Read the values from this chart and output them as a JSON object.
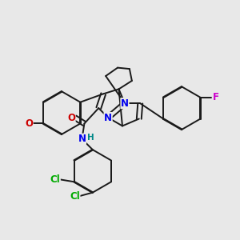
{
  "background_color": "#e8e8e8",
  "figsize": [
    3.0,
    3.0
  ],
  "dpi": 100,
  "bond_color": "#1a1a1a",
  "bond_width": 1.4,
  "atom_colors": {
    "N": "#0000ee",
    "O": "#cc0000",
    "F": "#cc00cc",
    "Cl": "#00aa00",
    "C": "#1a1a1a",
    "H": "#008888"
  },
  "font_size": 8.5
}
